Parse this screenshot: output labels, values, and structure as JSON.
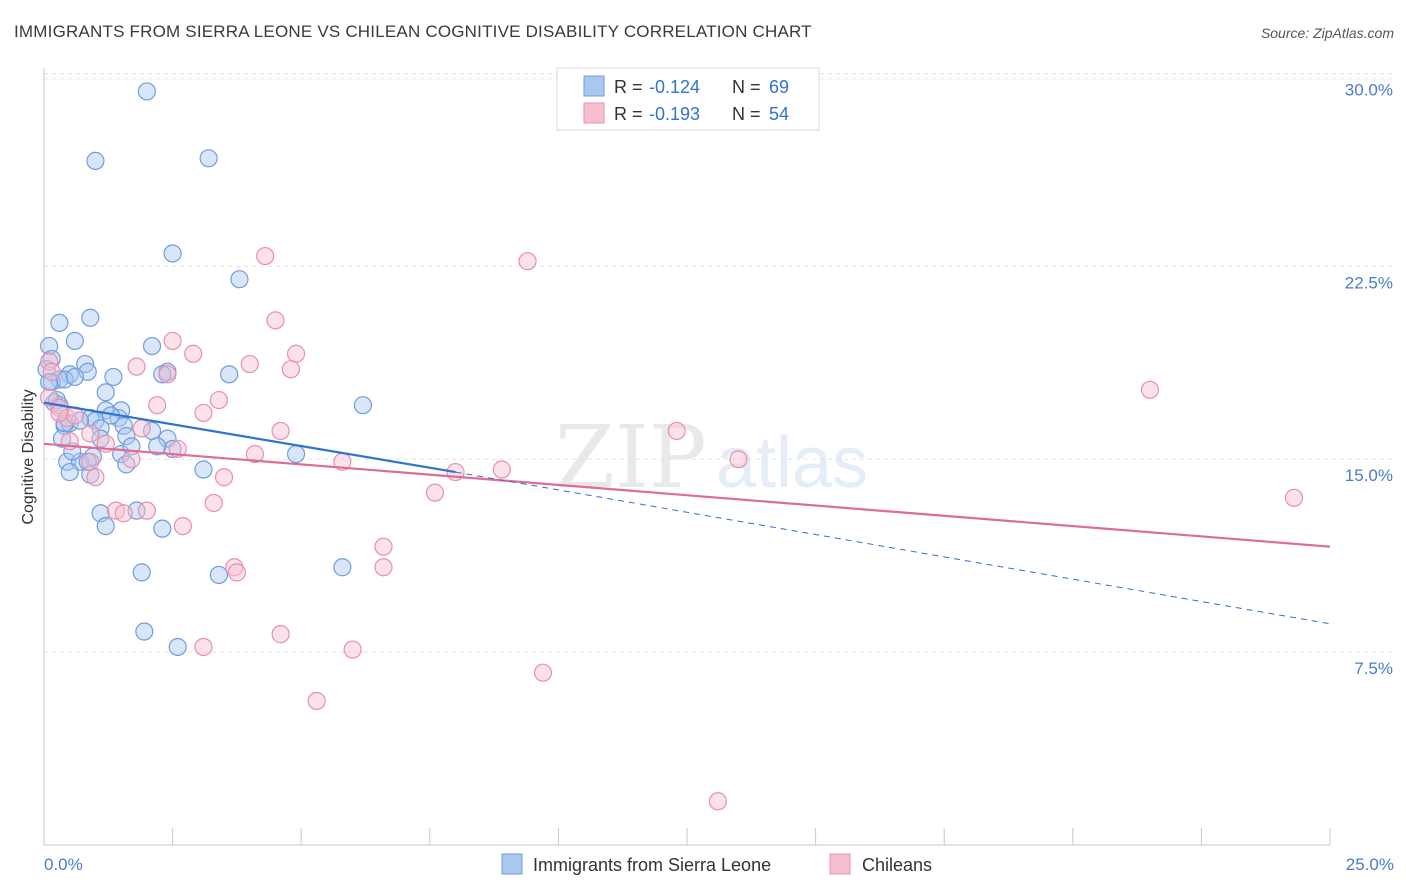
{
  "header": {
    "title": "IMMIGRANTS FROM SIERRA LEONE VS CHILEAN COGNITIVE DISABILITY CORRELATION CHART",
    "source": "Source: ZipAtlas.com"
  },
  "watermark": {
    "zip": "ZIP",
    "atlas": "atlas"
  },
  "legend_box": {
    "rows": [
      {
        "r_label": "R = ",
        "r_value": "-0.124",
        "n_label": "N = ",
        "n_value": "69"
      },
      {
        "r_label": "R = ",
        "r_value": "-0.193",
        "n_label": "N = ",
        "n_value": "54"
      }
    ]
  },
  "chart_data": {
    "type": "scatter",
    "title": "IMMIGRANTS FROM SIERRA LEONE VS CHILEAN COGNITIVE DISABILITY CORRELATION CHART",
    "xlabel": "",
    "ylabel": "Cognitive Disability",
    "xlim": [
      0,
      25
    ],
    "ylim": [
      0,
      32
    ],
    "x_tick_labels": [
      "0.0%",
      "25.0%"
    ],
    "y_ticks": [
      7.5,
      15.0,
      22.5,
      30.0
    ],
    "y_tick_labels": [
      "7.5%",
      "15.0%",
      "22.5%",
      "30.0%"
    ],
    "grid": true,
    "legend_position": "bottom",
    "colors": {
      "blue_fill": "#a9c8f0",
      "blue_stroke": "#6f9edc",
      "blue_line": "#2f72d0",
      "pink_fill": "#f6bfd0",
      "pink_stroke": "#e98fae",
      "pink_line": "#e06b95",
      "tick_text": "#4a7cc9"
    },
    "series": [
      {
        "name": "Immigrants from Sierra Leone",
        "r": -0.124,
        "n": 69,
        "trend": {
          "x0": 0,
          "y0": 17.2,
          "x1": 8.0,
          "y1": 14.5,
          "dashed_to_x": 25,
          "dashed_to_y": 8.6
        },
        "points": [
          [
            2.0,
            29.3
          ],
          [
            1.0,
            26.6
          ],
          [
            3.2,
            26.7
          ],
          [
            2.5,
            23.0
          ],
          [
            3.8,
            22.0
          ],
          [
            0.3,
            20.3
          ],
          [
            0.9,
            20.5
          ],
          [
            0.6,
            19.6
          ],
          [
            2.1,
            19.4
          ],
          [
            0.1,
            19.4
          ],
          [
            0.15,
            18.9
          ],
          [
            0.8,
            18.7
          ],
          [
            0.05,
            18.5
          ],
          [
            0.85,
            18.4
          ],
          [
            0.5,
            18.3
          ],
          [
            1.35,
            18.2
          ],
          [
            0.3,
            18.1
          ],
          [
            0.15,
            18.0
          ],
          [
            0.4,
            18.1
          ],
          [
            2.4,
            18.4
          ],
          [
            3.6,
            18.3
          ],
          [
            1.2,
            17.6
          ],
          [
            0.2,
            17.2
          ],
          [
            0.3,
            17.1
          ],
          [
            6.2,
            17.1
          ],
          [
            1.5,
            16.9
          ],
          [
            1.2,
            16.9
          ],
          [
            0.9,
            16.6
          ],
          [
            1.45,
            16.6
          ],
          [
            0.4,
            16.3
          ],
          [
            0.5,
            16.4
          ],
          [
            1.0,
            16.5
          ],
          [
            1.1,
            16.2
          ],
          [
            1.55,
            16.3
          ],
          [
            1.6,
            15.9
          ],
          [
            1.1,
            15.8
          ],
          [
            0.35,
            15.8
          ],
          [
            2.1,
            16.1
          ],
          [
            2.4,
            15.8
          ],
          [
            0.95,
            15.1
          ],
          [
            1.5,
            15.2
          ],
          [
            2.5,
            15.4
          ],
          [
            4.9,
            15.2
          ],
          [
            0.45,
            14.9
          ],
          [
            0.7,
            14.9
          ],
          [
            0.85,
            14.9
          ],
          [
            1.6,
            14.8
          ],
          [
            0.5,
            14.5
          ],
          [
            3.1,
            14.6
          ],
          [
            0.9,
            14.4
          ],
          [
            1.1,
            12.9
          ],
          [
            1.8,
            13.0
          ],
          [
            1.2,
            12.4
          ],
          [
            2.3,
            12.3
          ],
          [
            1.9,
            10.6
          ],
          [
            3.4,
            10.5
          ],
          [
            5.8,
            10.8
          ],
          [
            1.95,
            8.3
          ],
          [
            2.6,
            7.7
          ],
          [
            0.25,
            17.3
          ],
          [
            0.6,
            18.2
          ],
          [
            1.3,
            16.7
          ],
          [
            0.7,
            16.5
          ],
          [
            2.2,
            15.5
          ],
          [
            0.4,
            16.4
          ],
          [
            1.7,
            15.5
          ],
          [
            0.55,
            15.3
          ],
          [
            0.1,
            18.0
          ],
          [
            2.3,
            18.3
          ]
        ]
      },
      {
        "name": "Chileans",
        "r": -0.193,
        "n": 54,
        "trend": {
          "x0": 0,
          "y0": 15.6,
          "x1": 25,
          "y1": 11.6
        },
        "points": [
          [
            4.3,
            22.9
          ],
          [
            9.4,
            22.7
          ],
          [
            4.5,
            20.4
          ],
          [
            2.5,
            19.6
          ],
          [
            2.9,
            19.1
          ],
          [
            4.9,
            19.1
          ],
          [
            0.1,
            18.8
          ],
          [
            1.8,
            18.6
          ],
          [
            4.0,
            18.7
          ],
          [
            2.4,
            18.3
          ],
          [
            4.8,
            18.5
          ],
          [
            0.15,
            18.4
          ],
          [
            21.5,
            17.7
          ],
          [
            0.1,
            17.4
          ],
          [
            3.4,
            17.3
          ],
          [
            2.2,
            17.1
          ],
          [
            0.3,
            17.0
          ],
          [
            3.1,
            16.8
          ],
          [
            0.45,
            16.6
          ],
          [
            0.6,
            16.7
          ],
          [
            0.5,
            15.7
          ],
          [
            1.9,
            16.2
          ],
          [
            4.6,
            16.1
          ],
          [
            12.3,
            16.1
          ],
          [
            0.9,
            16.0
          ],
          [
            1.2,
            15.6
          ],
          [
            2.6,
            15.4
          ],
          [
            4.1,
            15.2
          ],
          [
            1.7,
            15.0
          ],
          [
            5.8,
            14.9
          ],
          [
            0.9,
            14.9
          ],
          [
            13.5,
            15.0
          ],
          [
            8.0,
            14.5
          ],
          [
            8.9,
            14.6
          ],
          [
            3.5,
            14.3
          ],
          [
            1.0,
            14.3
          ],
          [
            7.6,
            13.7
          ],
          [
            3.3,
            13.3
          ],
          [
            1.4,
            13.0
          ],
          [
            2.0,
            13.0
          ],
          [
            24.3,
            13.5
          ],
          [
            1.55,
            12.9
          ],
          [
            2.7,
            12.4
          ],
          [
            6.6,
            11.6
          ],
          [
            6.6,
            10.8
          ],
          [
            3.7,
            10.8
          ],
          [
            3.75,
            10.6
          ],
          [
            4.6,
            8.2
          ],
          [
            6.0,
            7.6
          ],
          [
            3.1,
            7.7
          ],
          [
            9.7,
            6.7
          ],
          [
            5.3,
            5.6
          ],
          [
            13.1,
            1.7
          ],
          [
            0.3,
            16.8
          ]
        ]
      }
    ]
  },
  "bottom_legend": {
    "items": [
      "Immigrants from Sierra Leone",
      "Chileans"
    ]
  }
}
